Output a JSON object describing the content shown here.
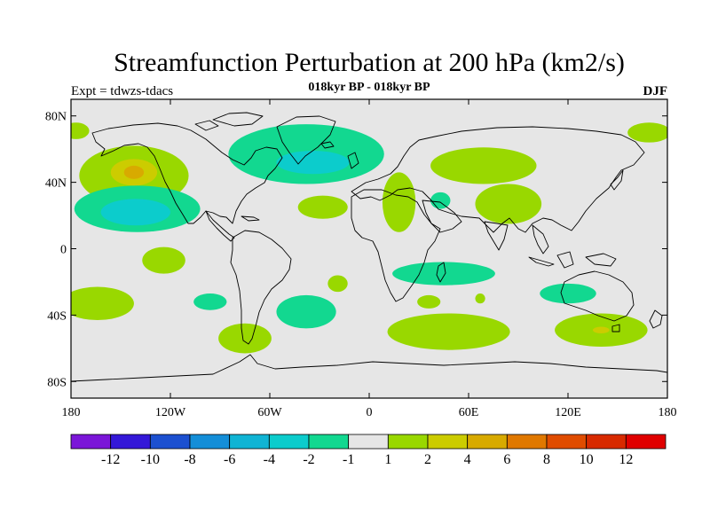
{
  "title": "Streamfunction Perturbation at 200 hPa (km2/s)",
  "left_label": "Expt = tdwzs-tdacs",
  "center_label": "018kyr BP - 018kyr BP",
  "right_label": "DJF",
  "lat_ticks": [
    {
      "lat": 80,
      "label": "80N"
    },
    {
      "lat": 40,
      "label": "40N"
    },
    {
      "lat": 0,
      "label": "0"
    },
    {
      "lat": -40,
      "label": "40S"
    },
    {
      "lat": -80,
      "label": "80S"
    }
  ],
  "lon_ticks": [
    {
      "lon": 180,
      "label": "180"
    },
    {
      "lon": -120,
      "label": "120W"
    },
    {
      "lon": -60,
      "label": "60W"
    },
    {
      "lon": 0,
      "label": "0"
    },
    {
      "lon": 60,
      "label": "60E"
    },
    {
      "lon": 120,
      "label": "120E"
    },
    {
      "lon": 180,
      "label": "180"
    }
  ],
  "colorbar": {
    "colors": [
      "#7b16d8",
      "#3418d8",
      "#1c50d0",
      "#148ed8",
      "#10b4d4",
      "#0ccccc",
      "#12d890",
      "#e6e6e6",
      "#99d800",
      "#cccc00",
      "#d8aa00",
      "#e07800",
      "#e04c00",
      "#d82a00",
      "#e00000"
    ],
    "labels": [
      "-12",
      "-10",
      "-8",
      "-6",
      "-4",
      "-2",
      "-1",
      "1",
      "2",
      "4",
      "6",
      "8",
      "10",
      "12"
    ]
  },
  "contour_colors": {
    "light_green": "#99d800",
    "yellow": "#cccc00",
    "orange_yellow": "#d8aa00",
    "teal": "#12d890",
    "cyan": "#0ccccc",
    "background": "#e6e6e6"
  },
  "contours": [
    {
      "level": "1 to 2",
      "color": "#99d800",
      "lon": -142,
      "lat": 44,
      "rlon": 33,
      "rlat": 18
    },
    {
      "level": "2 to 4",
      "color": "#cccc00",
      "lon": -142,
      "lat": 46,
      "rlon": 14,
      "rlat": 8
    },
    {
      "level": "4 to 6",
      "color": "#d8aa00",
      "lon": -142,
      "lat": 46,
      "rlon": 6,
      "rlat": 4
    },
    {
      "level": "1 to 2",
      "color": "#99d800",
      "lon": -177,
      "lat": 71,
      "rlon": 8,
      "rlat": 5
    },
    {
      "level": "-1 to -2",
      "color": "#12d890",
      "lon": -140,
      "lat": 24,
      "rlon": 38,
      "rlat": 14
    },
    {
      "level": "-2 to -4",
      "color": "#0ccccc",
      "lon": -141,
      "lat": 22,
      "rlon": 21,
      "rlat": 8
    },
    {
      "level": "1 to 2",
      "color": "#99d800",
      "lon": -124,
      "lat": -7,
      "rlon": 13,
      "rlat": 8
    },
    {
      "level": "1 to 2",
      "color": "#99d800",
      "lon": -164,
      "lat": -33,
      "rlon": 22,
      "rlat": 10
    },
    {
      "level": "-1 to -2",
      "color": "#12d890",
      "lon": -96,
      "lat": -32,
      "rlon": 10,
      "rlat": 5
    },
    {
      "level": "1 to 2",
      "color": "#99d800",
      "lon": -75,
      "lat": -54,
      "rlon": 16,
      "rlat": 9
    },
    {
      "level": "-1 to -2",
      "color": "#12d890",
      "lon": -38,
      "lat": 57,
      "rlon": 47,
      "rlat": 18
    },
    {
      "level": "-2 to -4",
      "color": "#0ccccc",
      "lon": -34,
      "lat": 52,
      "rlon": 22,
      "rlat": 7
    },
    {
      "level": "1 to 2",
      "color": "#99d800",
      "lon": -28,
      "lat": 25,
      "rlon": 15,
      "rlat": 7
    },
    {
      "level": "-1 to -2",
      "color": "#12d890",
      "lon": -38,
      "lat": -38,
      "rlon": 18,
      "rlat": 10
    },
    {
      "level": "1 to 2",
      "color": "#99d800",
      "lon": -19,
      "lat": -21,
      "rlon": 6,
      "rlat": 5
    },
    {
      "level": "1 to 2",
      "color": "#99d800",
      "lon": 18,
      "lat": 28,
      "rlon": 10,
      "rlat": 18
    },
    {
      "level": "-1 to -2",
      "color": "#12d890",
      "lon": 43,
      "lat": 29,
      "rlon": 6,
      "rlat": 5
    },
    {
      "level": "1 to 2",
      "color": "#99d800",
      "lon": 69,
      "lat": 50,
      "rlon": 32,
      "rlat": 11
    },
    {
      "level": "1 to 2",
      "color": "#99d800",
      "lon": 84,
      "lat": 27,
      "rlon": 20,
      "rlat": 12
    },
    {
      "level": "-1 to -2",
      "color": "#12d890",
      "lon": 45,
      "lat": -15,
      "rlon": 31,
      "rlat": 7
    },
    {
      "level": "1 to 2",
      "color": "#99d800",
      "lon": 36,
      "lat": -32,
      "rlon": 7,
      "rlat": 4
    },
    {
      "level": "1 to 2",
      "color": "#99d800",
      "lon": 67,
      "lat": -30,
      "rlon": 3,
      "rlat": 3
    },
    {
      "level": "1 to 2",
      "color": "#99d800",
      "lon": 48,
      "lat": -50,
      "rlon": 37,
      "rlat": 11
    },
    {
      "level": "-1 to -2",
      "color": "#12d890",
      "lon": 120,
      "lat": -27,
      "rlon": 17,
      "rlat": 6
    },
    {
      "level": "1 to 2",
      "color": "#99d800",
      "lon": 140,
      "lat": -49,
      "rlon": 28,
      "rlat": 10
    },
    {
      "level": "2 to 4",
      "color": "#cccc00",
      "lon": 140,
      "lat": -49,
      "rlon": 5,
      "rlat": 2
    },
    {
      "level": "1 to 2",
      "color": "#99d800",
      "lon": 169,
      "lat": 70,
      "rlon": 13,
      "rlat": 6
    }
  ]
}
